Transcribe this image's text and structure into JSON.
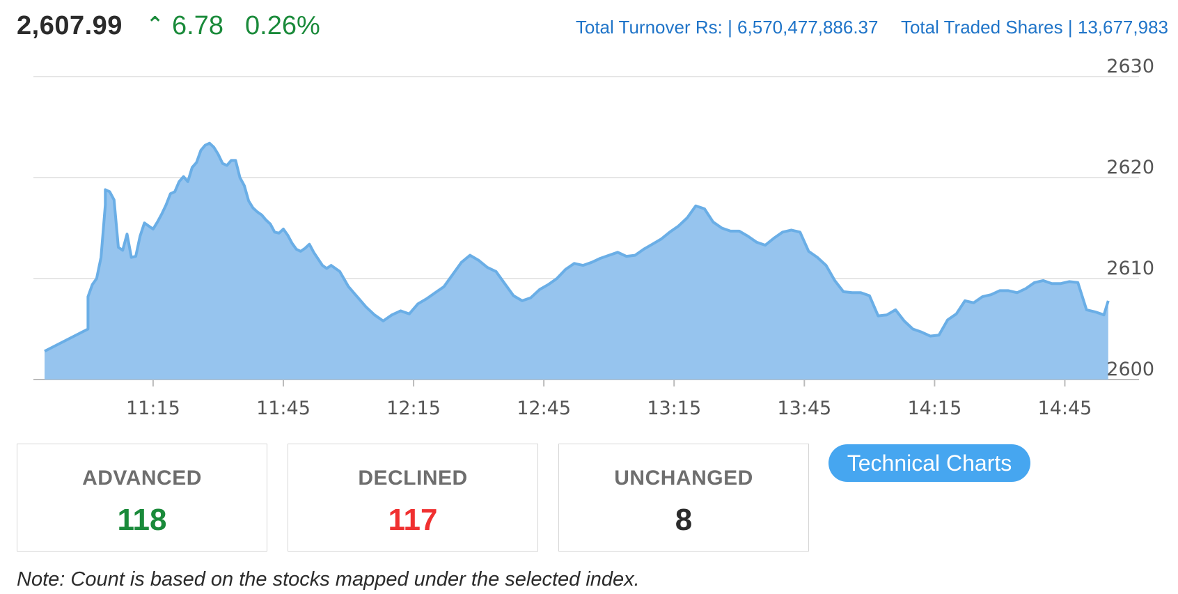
{
  "index": {
    "value": "2,607.99",
    "arrow_icon": "caret-up-icon",
    "arrow_glyph": "⌃",
    "change": "6.78",
    "change_pct": "0.26%",
    "up_color": "#1a8a3a"
  },
  "totals": {
    "turnover_label": "Total Turnover Rs:",
    "turnover_value": "| 6,570,477,886.37",
    "shares_label": "Total Traded Shares",
    "shares_value": "| 13,677,983",
    "link_color": "#1f74c8"
  },
  "chart_data": {
    "type": "area",
    "xlabel": "",
    "ylabel": "",
    "title": "",
    "ylim": [
      2600,
      2630
    ],
    "yticks": [
      2600,
      2610,
      2620,
      2630
    ],
    "xticks": [
      "11:15",
      "11:45",
      "12:15",
      "12:45",
      "13:15",
      "13:45",
      "14:15",
      "14:45"
    ],
    "x_range": [
      "10:50",
      "15:00"
    ],
    "grid": "horizontal",
    "fill_color": "#96c4ee",
    "line_color": "#6aaee6",
    "series": [
      {
        "x": [
          "10:50",
          "11:00",
          "11:00",
          "11:01",
          "11:02",
          "11:03",
          "11:04",
          "11:04",
          "11:05",
          "11:06",
          "11:07",
          "11:08",
          "11:09",
          "11:10",
          "11:11",
          "11:12",
          "11:13",
          "11:14",
          "11:15",
          "11:16",
          "11:17",
          "11:18",
          "11:19",
          "11:20",
          "11:21",
          "11:22",
          "11:23",
          "11:24",
          "11:25",
          "11:26",
          "11:27",
          "11:28",
          "11:29",
          "11:30",
          "11:31",
          "11:32",
          "11:33",
          "11:34",
          "11:35",
          "11:36",
          "11:37",
          "11:38",
          "11:39",
          "11:40",
          "11:41",
          "11:42",
          "11:43",
          "11:44",
          "11:45",
          "11:46",
          "11:47",
          "11:48",
          "11:49",
          "11:50",
          "11:51",
          "11:52",
          "11:54",
          "11:55",
          "11:56",
          "11:58",
          "12:00",
          "12:02",
          "12:04",
          "12:06",
          "12:08",
          "12:10",
          "12:12",
          "12:14",
          "12:16",
          "12:18",
          "12:20",
          "12:22",
          "12:24",
          "12:26",
          "12:28",
          "12:30",
          "12:32",
          "12:34",
          "12:36",
          "12:38",
          "12:40",
          "12:42",
          "12:44",
          "12:46",
          "12:48",
          "12:50",
          "12:52",
          "12:54",
          "12:56",
          "12:58",
          "13:00",
          "13:02",
          "13:04",
          "13:06",
          "13:08",
          "13:10",
          "13:12",
          "13:14",
          "13:16",
          "13:18",
          "13:20",
          "13:22",
          "13:24",
          "13:26",
          "13:28",
          "13:30",
          "13:32",
          "13:34",
          "13:36",
          "13:38",
          "13:40",
          "13:42",
          "13:44",
          "13:46",
          "13:48",
          "13:50",
          "13:52",
          "13:54",
          "13:56",
          "13:58",
          "14:00",
          "14:02",
          "14:04",
          "14:06",
          "14:08",
          "14:10",
          "14:12",
          "14:14",
          "14:16",
          "14:18",
          "14:20",
          "14:22",
          "14:24",
          "14:26",
          "14:28",
          "14:30",
          "14:32",
          "14:34",
          "14:36",
          "14:38",
          "14:40",
          "14:42",
          "14:44",
          "14:46",
          "14:48",
          "14:50",
          "14:52",
          "14:54",
          "14:55"
        ],
        "values": [
          2602.8,
          2605.0,
          2608.2,
          2609.4,
          2610.0,
          2612.1,
          2617.3,
          2618.8,
          2618.6,
          2617.8,
          2613.1,
          2612.8,
          2614.4,
          2612.1,
          2612.2,
          2614.2,
          2615.5,
          2615.2,
          2614.9,
          2615.6,
          2616.4,
          2617.3,
          2618.4,
          2618.6,
          2619.6,
          2620.1,
          2619.6,
          2621.0,
          2621.5,
          2622.7,
          2623.2,
          2623.4,
          2623.0,
          2622.3,
          2621.4,
          2621.2,
          2621.7,
          2621.7,
          2620.0,
          2619.2,
          2617.7,
          2617.0,
          2616.6,
          2616.3,
          2615.8,
          2615.4,
          2614.6,
          2614.5,
          2614.9,
          2614.3,
          2613.5,
          2612.9,
          2612.7,
          2613.0,
          2613.4,
          2612.6,
          2611.3,
          2611.0,
          2611.3,
          2610.7,
          2609.2,
          2608.2,
          2607.2,
          2606.4,
          2605.8,
          2606.4,
          2606.8,
          2606.5,
          2607.5,
          2608.0,
          2608.6,
          2609.2,
          2610.4,
          2611.6,
          2612.3,
          2611.8,
          2611.1,
          2610.7,
          2609.5,
          2608.3,
          2607.8,
          2608.1,
          2608.9,
          2609.4,
          2610.0,
          2610.9,
          2611.5,
          2611.3,
          2611.6,
          2612.0,
          2612.3,
          2612.6,
          2612.2,
          2612.3,
          2612.9,
          2613.4,
          2613.9,
          2614.6,
          2615.2,
          2616.0,
          2617.2,
          2616.9,
          2615.6,
          2615.0,
          2614.7,
          2614.7,
          2614.2,
          2613.6,
          2613.3,
          2614.0,
          2614.6,
          2614.8,
          2614.6,
          2612.7,
          2612.1,
          2611.3,
          2609.8,
          2608.7,
          2608.6,
          2608.6,
          2608.3,
          2606.3,
          2606.4,
          2606.9,
          2605.8,
          2605.0,
          2604.7,
          2604.3,
          2604.4,
          2605.9,
          2606.5,
          2607.8,
          2607.6,
          2608.2,
          2608.4,
          2608.8,
          2608.8,
          2608.6,
          2609.0,
          2609.6,
          2609.8,
          2609.5,
          2609.5,
          2609.7,
          2609.6,
          2606.9,
          2606.7,
          2606.4,
          2607.8
        ]
      }
    ]
  },
  "stats": {
    "advanced_label": "ADVANCED",
    "advanced_value": "118",
    "declined_label": "DECLINED",
    "declined_value": "117",
    "unchanged_label": "UNCHANGED",
    "unchanged_value": "8",
    "advanced_color": "#1a8a3a",
    "declined_color": "#f03030",
    "unchanged_color": "#2b2b2b"
  },
  "button": {
    "label": "Technical Charts",
    "color": "#46a6f0"
  },
  "note": "Note: Count is based on the stocks mapped under the selected index."
}
